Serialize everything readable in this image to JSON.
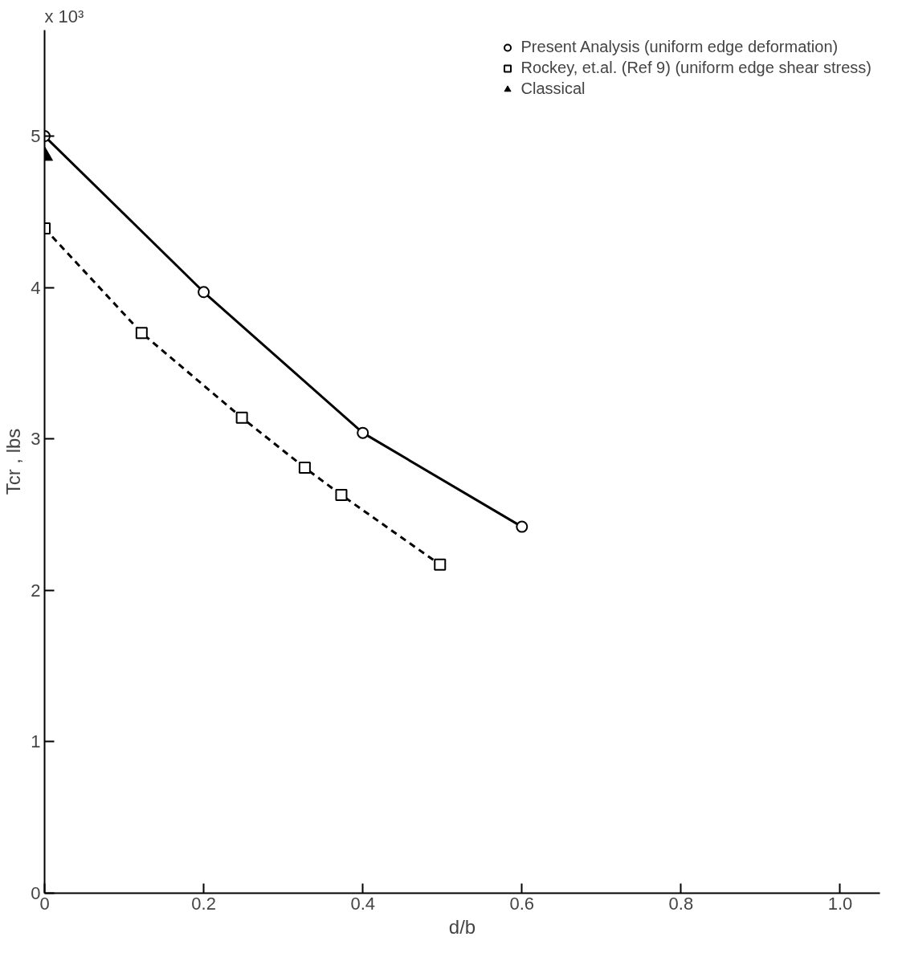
{
  "chart_data": {
    "type": "line",
    "xlabel": "d/b",
    "ylabel": "Tcr , lbs",
    "annotations": [
      "x 10³"
    ],
    "xlim": [
      0,
      1.05
    ],
    "ylim": [
      0,
      5.7
    ],
    "xticks": [
      0,
      {
        "value": 0.2,
        "label": "0.2"
      },
      {
        "value": 0.4,
        "label": "0.4"
      },
      {
        "value": 0.6,
        "label": "0.6"
      },
      {
        "value": 0.8,
        "label": "0.8"
      },
      {
        "value": 1.0,
        "label": "1.0"
      }
    ],
    "yticks": [
      0,
      1,
      2,
      3,
      4,
      5
    ],
    "grid": false,
    "legend": "top right",
    "series": [
      {
        "name": "Present Analysis (uniform edge deformation)",
        "color": "#000000",
        "marker": "circle",
        "line_style": "solid",
        "x": [
          0,
          0.2,
          0.4,
          0.6
        ],
        "values": [
          5.0,
          3.97,
          3.04,
          2.42
        ]
      },
      {
        "name": "Rockey, et.al. (Ref 9) (uniform edge shear stress)",
        "color": "#000000",
        "marker": "square",
        "line_style": "dashed",
        "x": [
          0,
          0.122,
          0.248,
          0.327,
          0.373,
          0.497
        ],
        "values": [
          4.39,
          3.7,
          3.14,
          2.81,
          2.63,
          2.17
        ]
      },
      {
        "name": "Classical",
        "color": "#000000",
        "type": "scatter",
        "marker": "triangle",
        "x": [
          0
        ],
        "values": [
          4.87
        ]
      }
    ]
  }
}
